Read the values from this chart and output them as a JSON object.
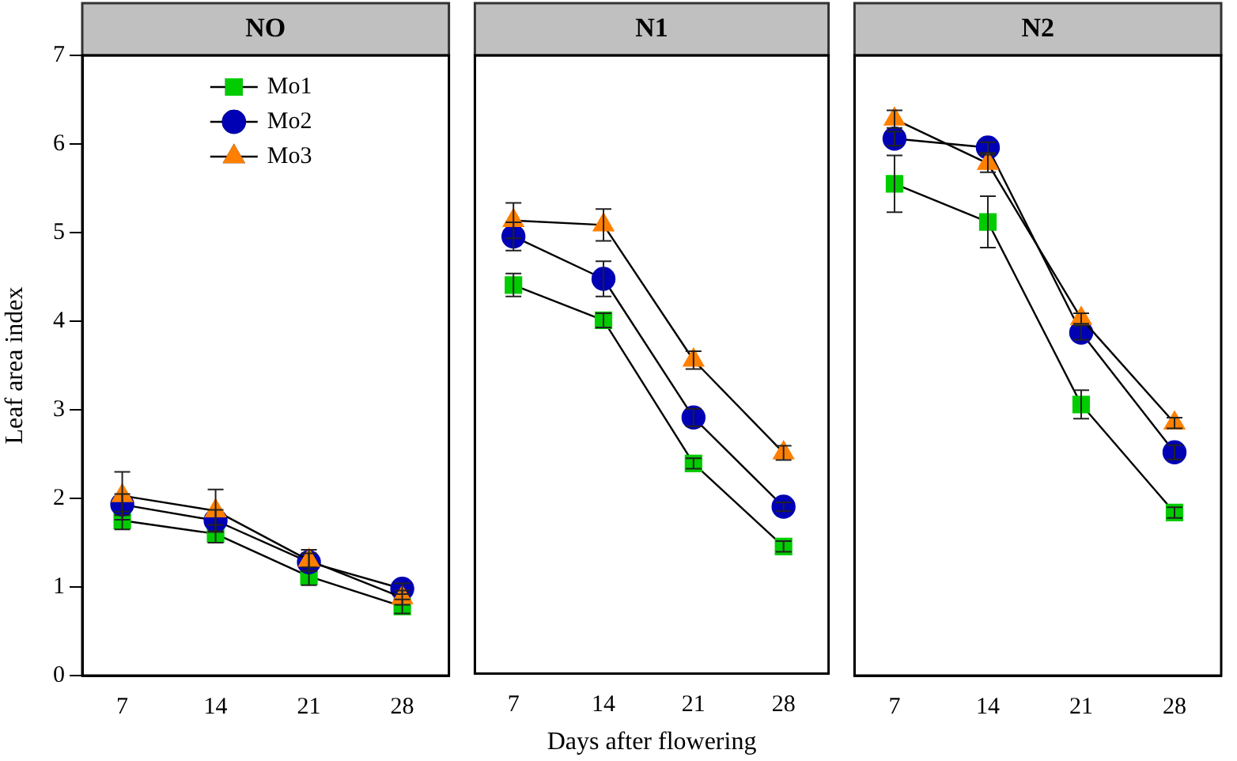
{
  "chart_data": [
    {
      "type": "line",
      "title": "NO",
      "ylabel": "Leaf area index",
      "x": [
        7,
        14,
        21,
        28
      ],
      "xlim": [
        4,
        31.5
      ],
      "xticks": [
        7,
        14,
        21,
        28
      ],
      "ylim": [
        0,
        7
      ],
      "yticks": [
        0,
        1,
        2,
        3,
        4,
        5,
        6,
        7
      ],
      "grid": false,
      "legend": "top",
      "line_style": "solid",
      "series": [
        {
          "name": "Mo1",
          "color": "#00cc00",
          "marker": "square",
          "values": [
            1.75,
            1.6,
            1.12,
            0.78
          ],
          "errors": [
            0.1,
            0.1,
            0.1,
            0.08
          ]
        },
        {
          "name": "Mo2",
          "color": "#0000b4",
          "marker": "circle",
          "values": [
            1.93,
            1.75,
            1.28,
            0.98
          ],
          "errors": [
            0.12,
            0.12,
            0.1,
            0.06
          ]
        },
        {
          "name": "Mo3",
          "color": "#ff8000",
          "marker": "triangle",
          "values": [
            2.03,
            1.86,
            1.3,
            0.88
          ],
          "errors": [
            0.27,
            0.24,
            0.12,
            0.08
          ]
        }
      ]
    },
    {
      "type": "line",
      "title": "N1",
      "xlabel": "Days after flowering",
      "x": [
        7,
        14,
        21,
        28
      ],
      "xlim": [
        4,
        31.5
      ],
      "xticks": [
        7,
        14,
        21,
        28
      ],
      "ylim": [
        0,
        7
      ],
      "yticks": [
        0,
        1,
        2,
        3,
        4,
        5,
        6,
        7
      ],
      "tick_labels": "x",
      "grid": false,
      "line_style": "solid",
      "series": [
        {
          "color": "#00cc00",
          "marker": "square",
          "values": [
            4.4,
            4.0,
            2.38,
            1.44
          ],
          "errors": [
            0.13,
            0.08,
            0.06,
            0.06
          ]
        },
        {
          "color": "#0000b4",
          "marker": "circle",
          "values": [
            4.95,
            4.47,
            2.9,
            1.89
          ],
          "errors": [
            0.16,
            0.2,
            0.1,
            0.05
          ]
        },
        {
          "color": "#ff8000",
          "marker": "triangle",
          "values": [
            5.13,
            5.08,
            3.55,
            2.5
          ],
          "errors": [
            0.2,
            0.18,
            0.1,
            0.08
          ]
        }
      ]
    },
    {
      "type": "line",
      "title": "N2",
      "x": [
        7,
        14,
        21,
        28
      ],
      "xlim": [
        4,
        31.5
      ],
      "xticks": [
        7,
        14,
        21,
        28
      ],
      "ylim": [
        0,
        7
      ],
      "yticks": [
        0,
        1,
        2,
        3,
        4,
        5,
        6,
        7
      ],
      "tick_labels": "x",
      "grid": false,
      "line_style": "solid",
      "series": [
        {
          "color": "#00cc00",
          "marker": "square",
          "values": [
            5.55,
            5.12,
            3.06,
            1.84
          ],
          "errors": [
            0.32,
            0.29,
            0.16,
            0.06
          ]
        },
        {
          "color": "#0000b4",
          "marker": "circle",
          "values": [
            6.06,
            5.96,
            3.87,
            2.52
          ],
          "errors": [
            0.08,
            0.06,
            0.08,
            0.08
          ]
        },
        {
          "color": "#ff8000",
          "marker": "triangle",
          "values": [
            6.28,
            5.78,
            4.03,
            2.85
          ],
          "errors": [
            0.1,
            0.1,
            0.06,
            0.06
          ]
        }
      ]
    }
  ]
}
